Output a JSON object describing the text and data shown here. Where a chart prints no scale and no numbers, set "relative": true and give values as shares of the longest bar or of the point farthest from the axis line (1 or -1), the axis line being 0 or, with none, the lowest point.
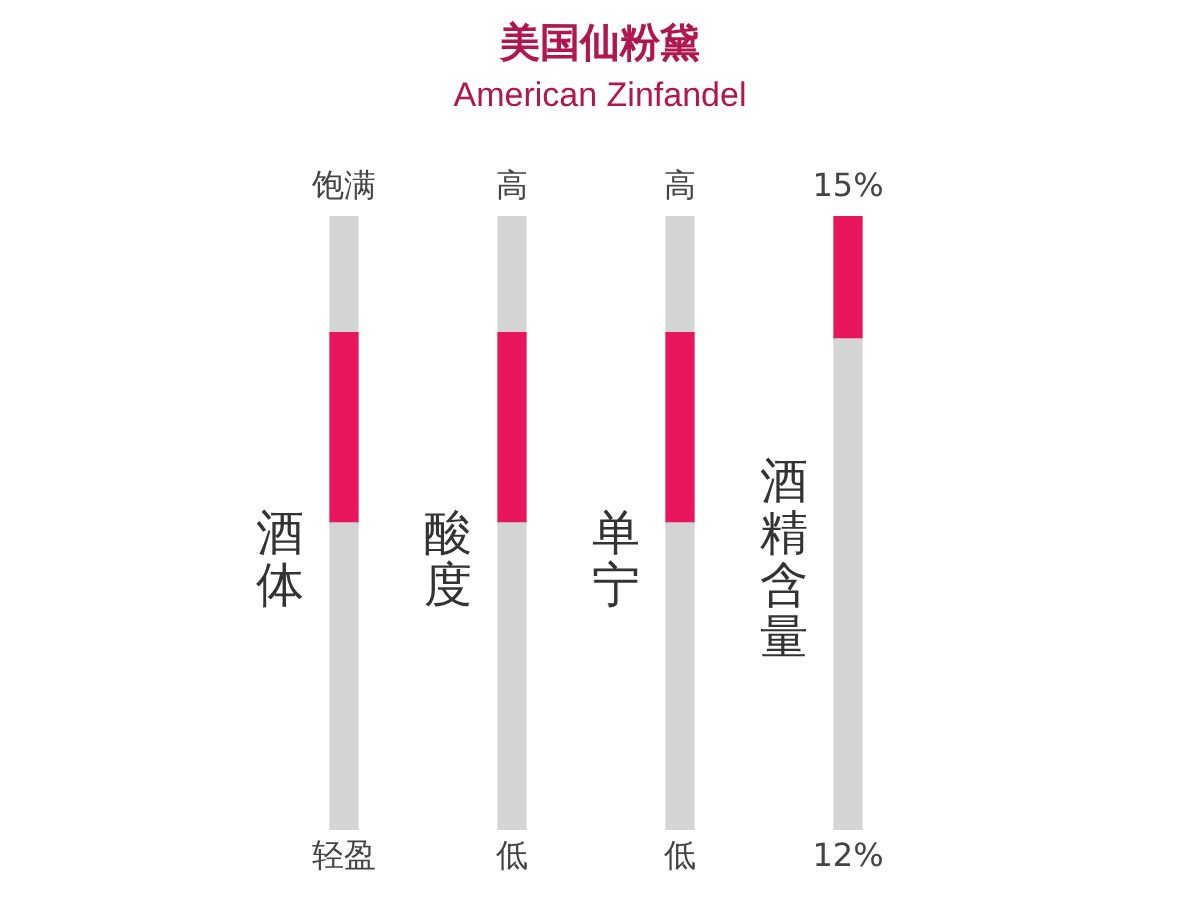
{
  "chart_data": {
    "type": "bar",
    "title": "美国仙粉黛",
    "subtitle": "American Zinfandel",
    "relative": true,
    "stacked": true,
    "categories": [
      "酒体",
      "酸度",
      "单宁",
      "酒精含量"
    ],
    "series": [
      {
        "color": "#d4d4d4",
        "values": [
          0.5,
          0.5,
          0.5,
          0.8
        ]
      },
      {
        "color": "#e8175d",
        "values": [
          0.31,
          0.31,
          0.31,
          0.2
        ]
      },
      {
        "color": "#d4d4d4",
        "values": [
          0.19,
          0.19,
          0.19,
          0
        ]
      }
    ],
    "annotations": [
      "饱满",
      "轻盈",
      "高",
      "低",
      "高",
      "低",
      "15%",
      "12%"
    ],
    "legend": false,
    "tick_labels": false
  }
}
